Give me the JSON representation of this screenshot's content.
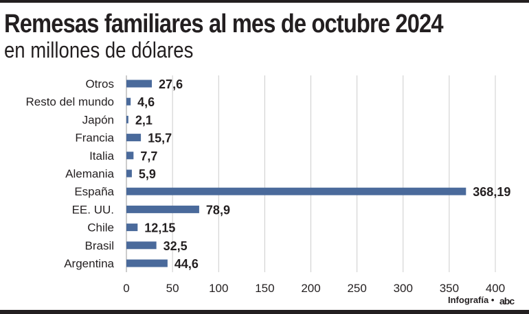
{
  "chart_data": {
    "type": "bar",
    "orientation": "horizontal",
    "title": "Remesas familiares al mes de octubre 2024",
    "subtitle": "en millones de dólares",
    "categories": [
      "Otros",
      "Resto del mundo",
      "Japón",
      "Francia",
      "Italia",
      "Alemania",
      "España",
      "EE. UU.",
      "Chile",
      "Brasil",
      "Argentina"
    ],
    "values": [
      27.6,
      4.6,
      2.1,
      15.7,
      7.7,
      5.9,
      368.19,
      78.9,
      12.15,
      32.5,
      44.6
    ],
    "value_labels": [
      "27,6",
      "4,6",
      "2,1",
      "15,7",
      "7,7",
      "5,9",
      "368,19",
      "78,9",
      "12,15",
      "32,5",
      "44,6"
    ],
    "xlim": [
      0,
      400
    ],
    "xticks": [
      0,
      50,
      100,
      150,
      200,
      250,
      300,
      350,
      400
    ],
    "grid": true,
    "bar_color": "#4a6a9b"
  },
  "footer": {
    "credit": "Infografía •",
    "logo": "abc"
  }
}
